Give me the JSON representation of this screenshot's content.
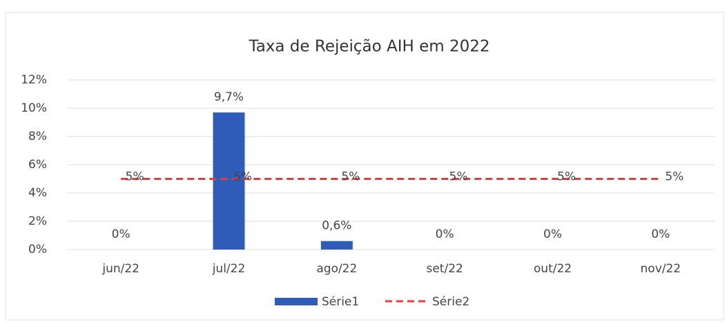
{
  "chart_data": {
    "type": "bar",
    "title": "Taxa de Rejeição AIH em 2022",
    "categories": [
      "jun/22",
      "jul/22",
      "ago/22",
      "set/22",
      "out/22",
      "nov/22"
    ],
    "series": [
      {
        "name": "Série1",
        "type": "bar",
        "color": "#2e5cb8",
        "values": [
          0,
          9.7,
          0.6,
          0,
          0,
          0
        ],
        "value_labels": [
          "0%",
          "9,7%",
          "0,6%",
          "0%",
          "0%",
          "0%"
        ]
      },
      {
        "name": "Série2",
        "type": "line",
        "color": "#e83a3a",
        "values": [
          5,
          5,
          5,
          5,
          5,
          5
        ],
        "value_labels": [
          "5%",
          "5%",
          "5%",
          "5%",
          "5%",
          "5%"
        ]
      }
    ],
    "ylim": [
      0,
      12
    ],
    "yticks": [
      {
        "value": 0,
        "label": "0%"
      },
      {
        "value": 2,
        "label": "2%"
      },
      {
        "value": 4,
        "label": "4%"
      },
      {
        "value": 6,
        "label": "6%"
      },
      {
        "value": 8,
        "label": "8%"
      },
      {
        "value": 10,
        "label": "10%"
      },
      {
        "value": 12,
        "label": "12%"
      }
    ],
    "grid": true,
    "legend": "bottom"
  }
}
